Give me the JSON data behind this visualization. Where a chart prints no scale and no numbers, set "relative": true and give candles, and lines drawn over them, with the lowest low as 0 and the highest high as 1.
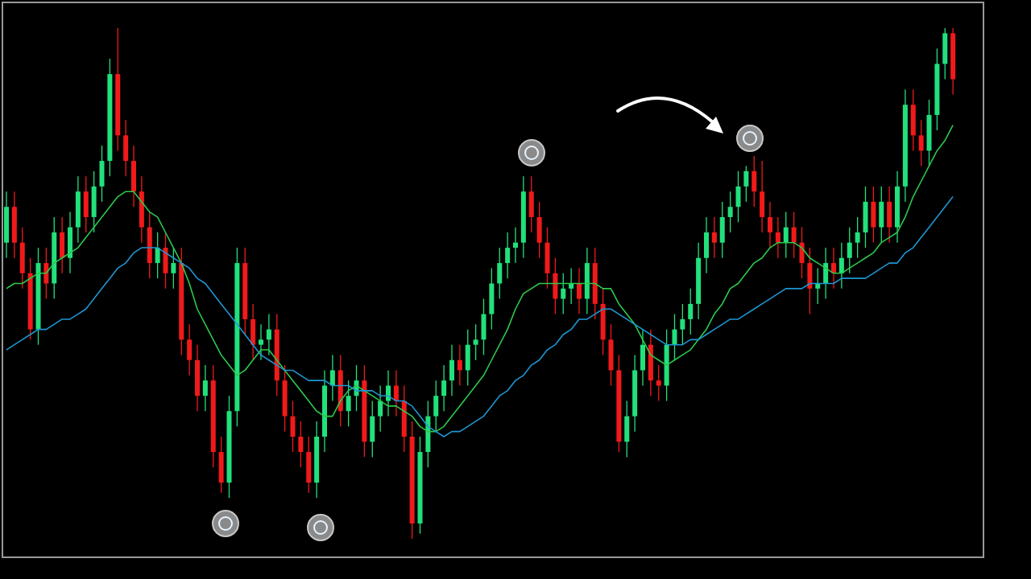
{
  "chart_data": {
    "type": "candlestick",
    "relative": true,
    "tick_labels": false,
    "marker": "none",
    "categories": [
      null,
      null,
      null,
      null,
      null,
      null,
      null,
      null,
      null,
      null,
      null,
      null,
      null,
      null,
      null,
      null,
      null,
      null,
      null,
      null,
      null,
      null,
      null,
      null,
      null,
      null,
      null,
      null,
      null,
      null,
      null,
      null,
      null,
      null,
      null,
      null,
      null,
      null,
      null,
      null,
      null,
      null,
      null,
      null,
      null,
      null,
      null,
      null,
      null,
      null,
      null,
      null,
      null,
      null,
      null,
      null,
      null,
      null,
      null,
      null,
      null,
      null,
      null,
      null,
      null,
      null,
      null,
      null,
      null,
      null,
      null,
      null,
      null,
      null,
      null,
      null,
      null,
      null,
      null,
      null,
      null,
      null,
      null,
      null,
      null,
      null,
      null,
      null,
      null,
      null,
      null,
      null,
      null,
      null,
      null,
      null,
      null,
      null,
      null,
      null,
      null,
      null,
      null,
      null,
      null,
      null,
      null,
      null,
      null,
      null,
      null,
      null,
      null,
      null,
      null,
      null,
      null,
      null,
      null,
      null
    ],
    "ohlc": [
      [
        0.58,
        0.68,
        0.55,
        0.65
      ],
      [
        0.65,
        0.68,
        0.55,
        0.58
      ],
      [
        0.58,
        0.61,
        0.49,
        0.52
      ],
      [
        0.52,
        0.55,
        0.39,
        0.41
      ],
      [
        0.41,
        0.57,
        0.38,
        0.54
      ],
      [
        0.54,
        0.57,
        0.47,
        0.5
      ],
      [
        0.5,
        0.63,
        0.47,
        0.6
      ],
      [
        0.6,
        0.63,
        0.52,
        0.55
      ],
      [
        0.55,
        0.64,
        0.52,
        0.61
      ],
      [
        0.61,
        0.71,
        0.58,
        0.68
      ],
      [
        0.68,
        0.71,
        0.6,
        0.63
      ],
      [
        0.63,
        0.72,
        0.6,
        0.69
      ],
      [
        0.69,
        0.77,
        0.66,
        0.74
      ],
      [
        0.74,
        0.94,
        0.71,
        0.91
      ],
      [
        0.91,
        1.0,
        0.76,
        0.79
      ],
      [
        0.79,
        0.82,
        0.71,
        0.74
      ],
      [
        0.74,
        0.77,
        0.65,
        0.68
      ],
      [
        0.68,
        0.71,
        0.58,
        0.61
      ],
      [
        0.61,
        0.64,
        0.51,
        0.54
      ],
      [
        0.54,
        0.6,
        0.51,
        0.57
      ],
      [
        0.57,
        0.6,
        0.49,
        0.52
      ],
      [
        0.52,
        0.57,
        0.49,
        0.54
      ],
      [
        0.54,
        0.57,
        0.36,
        0.39
      ],
      [
        0.39,
        0.42,
        0.32,
        0.35
      ],
      [
        0.35,
        0.38,
        0.25,
        0.28
      ],
      [
        0.28,
        0.34,
        0.25,
        0.31
      ],
      [
        0.31,
        0.34,
        0.14,
        0.17
      ],
      [
        0.17,
        0.2,
        0.09,
        0.11
      ],
      [
        0.11,
        0.28,
        0.08,
        0.25
      ],
      [
        0.25,
        0.57,
        0.22,
        0.54
      ],
      [
        0.54,
        0.57,
        0.4,
        0.43
      ],
      [
        0.43,
        0.46,
        0.35,
        0.38
      ],
      [
        0.38,
        0.42,
        0.35,
        0.39
      ],
      [
        0.39,
        0.44,
        0.36,
        0.41
      ],
      [
        0.41,
        0.44,
        0.28,
        0.31
      ],
      [
        0.31,
        0.34,
        0.21,
        0.24
      ],
      [
        0.24,
        0.27,
        0.17,
        0.2
      ],
      [
        0.2,
        0.23,
        0.14,
        0.17
      ],
      [
        0.17,
        0.2,
        0.09,
        0.11
      ],
      [
        0.11,
        0.23,
        0.08,
        0.2
      ],
      [
        0.2,
        0.33,
        0.17,
        0.3
      ],
      [
        0.3,
        0.36,
        0.27,
        0.33
      ],
      [
        0.33,
        0.36,
        0.22,
        0.25
      ],
      [
        0.25,
        0.31,
        0.22,
        0.28
      ],
      [
        0.28,
        0.34,
        0.25,
        0.31
      ],
      [
        0.31,
        0.34,
        0.16,
        0.19
      ],
      [
        0.19,
        0.27,
        0.16,
        0.24
      ],
      [
        0.24,
        0.3,
        0.21,
        0.27
      ],
      [
        0.27,
        0.33,
        0.24,
        0.3
      ],
      [
        0.3,
        0.33,
        0.24,
        0.27
      ],
      [
        0.27,
        0.3,
        0.17,
        0.2
      ],
      [
        0.2,
        0.23,
        0.0,
        0.03
      ],
      [
        0.03,
        0.2,
        0.01,
        0.17
      ],
      [
        0.17,
        0.27,
        0.14,
        0.24
      ],
      [
        0.24,
        0.31,
        0.21,
        0.28
      ],
      [
        0.28,
        0.34,
        0.25,
        0.31
      ],
      [
        0.31,
        0.38,
        0.28,
        0.35
      ],
      [
        0.35,
        0.38,
        0.3,
        0.33
      ],
      [
        0.33,
        0.41,
        0.3,
        0.38
      ],
      [
        0.38,
        0.42,
        0.35,
        0.39
      ],
      [
        0.39,
        0.47,
        0.36,
        0.44
      ],
      [
        0.44,
        0.53,
        0.41,
        0.5
      ],
      [
        0.5,
        0.57,
        0.47,
        0.54
      ],
      [
        0.54,
        0.6,
        0.51,
        0.57
      ],
      [
        0.57,
        0.61,
        0.54,
        0.58
      ],
      [
        0.58,
        0.71,
        0.55,
        0.68
      ],
      [
        0.68,
        0.71,
        0.6,
        0.63
      ],
      [
        0.63,
        0.66,
        0.55,
        0.58
      ],
      [
        0.58,
        0.61,
        0.49,
        0.52
      ],
      [
        0.52,
        0.55,
        0.44,
        0.47
      ],
      [
        0.47,
        0.52,
        0.44,
        0.49
      ],
      [
        0.49,
        0.53,
        0.46,
        0.5
      ],
      [
        0.5,
        0.53,
        0.44,
        0.47
      ],
      [
        0.47,
        0.57,
        0.44,
        0.54
      ],
      [
        0.54,
        0.57,
        0.43,
        0.46
      ],
      [
        0.46,
        0.49,
        0.36,
        0.39
      ],
      [
        0.39,
        0.42,
        0.3,
        0.33
      ],
      [
        0.33,
        0.36,
        0.17,
        0.19
      ],
      [
        0.19,
        0.27,
        0.16,
        0.24
      ],
      [
        0.24,
        0.36,
        0.21,
        0.33
      ],
      [
        0.33,
        0.41,
        0.3,
        0.38
      ],
      [
        0.38,
        0.41,
        0.28,
        0.31
      ],
      [
        0.31,
        0.34,
        0.27,
        0.3
      ],
      [
        0.3,
        0.41,
        0.27,
        0.38
      ],
      [
        0.38,
        0.44,
        0.35,
        0.41
      ],
      [
        0.41,
        0.46,
        0.38,
        0.43
      ],
      [
        0.43,
        0.49,
        0.4,
        0.46
      ],
      [
        0.46,
        0.58,
        0.43,
        0.55
      ],
      [
        0.55,
        0.63,
        0.52,
        0.6
      ],
      [
        0.6,
        0.63,
        0.55,
        0.58
      ],
      [
        0.58,
        0.66,
        0.55,
        0.63
      ],
      [
        0.63,
        0.68,
        0.6,
        0.65
      ],
      [
        0.65,
        0.72,
        0.62,
        0.69
      ],
      [
        0.69,
        0.73,
        0.66,
        0.72
      ],
      [
        0.72,
        0.75,
        0.65,
        0.68
      ],
      [
        0.68,
        0.74,
        0.6,
        0.63
      ],
      [
        0.63,
        0.66,
        0.57,
        0.6
      ],
      [
        0.6,
        0.63,
        0.55,
        0.58
      ],
      [
        0.58,
        0.64,
        0.55,
        0.61
      ],
      [
        0.61,
        0.64,
        0.55,
        0.58
      ],
      [
        0.58,
        0.61,
        0.51,
        0.54
      ],
      [
        0.54,
        0.57,
        0.44,
        0.49
      ],
      [
        0.49,
        0.53,
        0.46,
        0.5
      ],
      [
        0.5,
        0.57,
        0.47,
        0.54
      ],
      [
        0.54,
        0.57,
        0.49,
        0.52
      ],
      [
        0.52,
        0.58,
        0.49,
        0.55
      ],
      [
        0.55,
        0.61,
        0.52,
        0.58
      ],
      [
        0.58,
        0.63,
        0.55,
        0.6
      ],
      [
        0.6,
        0.69,
        0.57,
        0.66
      ],
      [
        0.66,
        0.69,
        0.58,
        0.61
      ],
      [
        0.61,
        0.69,
        0.58,
        0.66
      ],
      [
        0.66,
        0.69,
        0.58,
        0.61
      ],
      [
        0.61,
        0.72,
        0.58,
        0.69
      ],
      [
        0.69,
        0.88,
        0.66,
        0.85
      ],
      [
        0.85,
        0.88,
        0.76,
        0.79
      ],
      [
        0.79,
        0.82,
        0.73,
        0.76
      ],
      [
        0.76,
        0.86,
        0.73,
        0.83
      ],
      [
        0.83,
        0.96,
        0.8,
        0.93
      ],
      [
        0.93,
        1.0,
        0.9,
        0.99
      ],
      [
        0.99,
        1.0,
        0.87,
        0.9
      ]
    ],
    "colors": [
      "#22e07c",
      "#f01a1a",
      "#f01a1a",
      "#f01a1a",
      "#22e07c",
      "#f01a1a",
      "#22e07c",
      "#f01a1a",
      "#22e07c",
      "#22e07c",
      "#f01a1a",
      "#22e07c",
      "#22e07c",
      "#22e07c",
      "#f01a1a",
      "#f01a1a",
      "#f01a1a",
      "#f01a1a",
      "#f01a1a",
      "#22e07c",
      "#f01a1a",
      "#22e07c",
      "#f01a1a",
      "#f01a1a",
      "#f01a1a",
      "#22e07c",
      "#f01a1a",
      "#f01a1a",
      "#22e07c",
      "#22e07c",
      "#f01a1a",
      "#f01a1a",
      "#22e07c",
      "#22e07c",
      "#f01a1a",
      "#f01a1a",
      "#f01a1a",
      "#f01a1a",
      "#f01a1a",
      "#22e07c",
      "#22e07c",
      "#22e07c",
      "#f01a1a",
      "#22e07c",
      "#22e07c",
      "#f01a1a",
      "#22e07c",
      "#22e07c",
      "#22e07c",
      "#f01a1a",
      "#f01a1a",
      "#f01a1a",
      "#22e07c",
      "#22e07c",
      "#22e07c",
      "#22e07c",
      "#22e07c",
      "#f01a1a",
      "#22e07c",
      "#22e07c",
      "#22e07c",
      "#22e07c",
      "#22e07c",
      "#22e07c",
      "#22e07c",
      "#22e07c",
      "#f01a1a",
      "#f01a1a",
      "#f01a1a",
      "#f01a1a",
      "#22e07c",
      "#22e07c",
      "#f01a1a",
      "#22e07c",
      "#f01a1a",
      "#f01a1a",
      "#f01a1a",
      "#f01a1a",
      "#22e07c",
      "#22e07c",
      "#22e07c",
      "#f01a1a",
      "#f01a1a",
      "#22e07c",
      "#22e07c",
      "#22e07c",
      "#22e07c",
      "#22e07c",
      "#22e07c",
      "#f01a1a",
      "#22e07c",
      "#22e07c",
      "#22e07c",
      "#22e07c",
      "#f01a1a",
      "#f01a1a",
      "#f01a1a",
      "#f01a1a",
      "#22e07c",
      "#f01a1a",
      "#f01a1a",
      "#f01a1a",
      "#22e07c",
      "#22e07c",
      "#f01a1a",
      "#22e07c",
      "#22e07c",
      "#22e07c",
      "#22e07c",
      "#f01a1a",
      "#22e07c",
      "#f01a1a",
      "#22e07c",
      "#22e07c",
      "#f01a1a",
      "#f01a1a",
      "#22e07c",
      "#22e07c",
      "#22e07c",
      "#f01a1a"
    ],
    "series": [
      {
        "type": "line",
        "color": "#2cc94a",
        "values": [
          0.49,
          0.5,
          0.5,
          0.51,
          0.52,
          0.52,
          0.54,
          0.55,
          0.56,
          0.57,
          0.59,
          0.61,
          0.63,
          0.65,
          0.67,
          0.68,
          0.68,
          0.66,
          0.64,
          0.63,
          0.6,
          0.57,
          0.54,
          0.5,
          0.45,
          0.42,
          0.39,
          0.36,
          0.34,
          0.32,
          0.33,
          0.35,
          0.37,
          0.37,
          0.35,
          0.33,
          0.31,
          0.29,
          0.27,
          0.25,
          0.24,
          0.24,
          0.27,
          0.29,
          0.3,
          0.29,
          0.28,
          0.27,
          0.26,
          0.26,
          0.25,
          0.24,
          0.22,
          0.21,
          0.21,
          0.22,
          0.24,
          0.26,
          0.28,
          0.3,
          0.32,
          0.35,
          0.38,
          0.41,
          0.45,
          0.48,
          0.49,
          0.5,
          0.5,
          0.5,
          0.5,
          0.5,
          0.5,
          0.5,
          0.5,
          0.49,
          0.49,
          0.46,
          0.44,
          0.42,
          0.39,
          0.36,
          0.35,
          0.34,
          0.35,
          0.36,
          0.37,
          0.39,
          0.41,
          0.44,
          0.46,
          0.49,
          0.5,
          0.52,
          0.54,
          0.55,
          0.57,
          0.58,
          0.58,
          0.58,
          0.57,
          0.55,
          0.54,
          0.53,
          0.52,
          0.52,
          0.53,
          0.54,
          0.55,
          0.56,
          0.58,
          0.59,
          0.6,
          0.63,
          0.67,
          0.7,
          0.73,
          0.76,
          0.78,
          0.81
        ]
      },
      {
        "type": "line",
        "color": "#1e96d2",
        "values": [
          0.37,
          0.38,
          0.39,
          0.4,
          0.41,
          0.41,
          0.42,
          0.43,
          0.43,
          0.44,
          0.45,
          0.47,
          0.49,
          0.51,
          0.53,
          0.54,
          0.56,
          0.57,
          0.57,
          0.57,
          0.56,
          0.55,
          0.54,
          0.53,
          0.51,
          0.5,
          0.48,
          0.46,
          0.44,
          0.42,
          0.4,
          0.38,
          0.36,
          0.35,
          0.34,
          0.33,
          0.33,
          0.32,
          0.31,
          0.31,
          0.31,
          0.3,
          0.3,
          0.3,
          0.29,
          0.29,
          0.29,
          0.28,
          0.28,
          0.27,
          0.27,
          0.26,
          0.24,
          0.22,
          0.21,
          0.2,
          0.21,
          0.21,
          0.22,
          0.23,
          0.24,
          0.26,
          0.28,
          0.29,
          0.31,
          0.32,
          0.34,
          0.35,
          0.37,
          0.38,
          0.4,
          0.41,
          0.43,
          0.43,
          0.44,
          0.45,
          0.45,
          0.44,
          0.43,
          0.42,
          0.41,
          0.4,
          0.39,
          0.38,
          0.38,
          0.38,
          0.39,
          0.39,
          0.4,
          0.41,
          0.42,
          0.43,
          0.43,
          0.44,
          0.45,
          0.46,
          0.47,
          0.48,
          0.49,
          0.49,
          0.49,
          0.5,
          0.5,
          0.5,
          0.5,
          0.51,
          0.51,
          0.51,
          0.51,
          0.52,
          0.53,
          0.54,
          0.54,
          0.56,
          0.57,
          0.59,
          0.61,
          0.63,
          0.65,
          0.67
        ]
      }
    ]
  }
}
